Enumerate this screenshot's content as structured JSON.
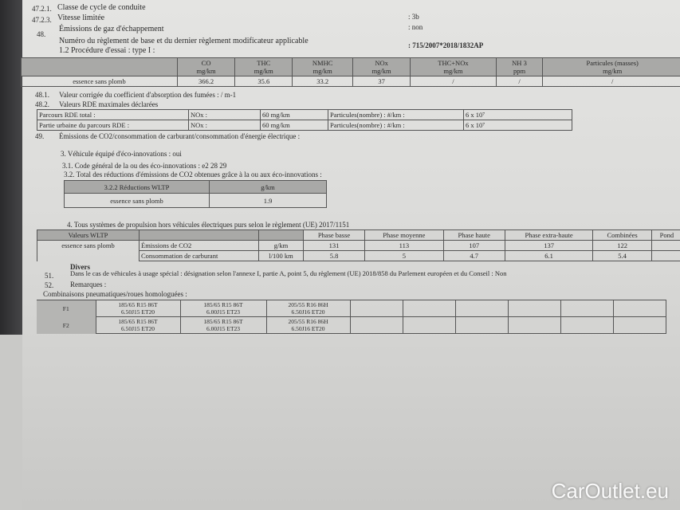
{
  "header": [
    {
      "num": "47.2.1.",
      "label": "Classe de cycle de conduite",
      "value": ""
    },
    {
      "num": "47.2.3.",
      "label": "Vitesse limitée",
      "value": ": 3b"
    },
    {
      "num": "48.",
      "label": "Émissions de gaz d'échappement",
      "value": ": non"
    },
    {
      "num": "",
      "label": "Numéro du règlement de base et du dernier règlement modificateur applicable",
      "value": ": 715/2007*2018/1832AP"
    },
    {
      "num": "",
      "label": "1.2 Procédure d'essai : type I :",
      "value": ""
    }
  ],
  "emissions": {
    "headers": [
      "",
      "CO\nmg/km",
      "THC\nmg/km",
      "NMHC\nmg/km",
      "NOx\nmg/km",
      "THC+NOx\nmg/km",
      "NH 3\nppm",
      "Particules (masses)\nmg/km"
    ],
    "row": [
      "essence sans plomb",
      "366.2",
      "35.6",
      "33.2",
      "37",
      "/",
      "/",
      "/"
    ]
  },
  "s481": {
    "num": "48.1.",
    "text": "Valeur corrigée du coefficient d'absorption des fumées : / m-1"
  },
  "s482": {
    "num": "48.2.",
    "text": "Valeurs RDE maximales déclarées"
  },
  "rde": [
    [
      "Parcours RDE total :",
      "NOx :",
      "60 mg/km",
      "Particules(nombre) : #/km :",
      "6 x 10⁷"
    ],
    [
      "Partie urbaine du parcours RDE    :",
      "NOx :",
      "60 mg/km",
      "Particules(nombre) : #/km :",
      "6 x 10⁷"
    ]
  ],
  "s49": {
    "num": "49.",
    "text": "Émissions de CO2/consommation de carburant/consommation d'énergie électrique :"
  },
  "eco": {
    "l1": "3. Véhicule équipé d'éco-innovations : oui",
    "l2": "3.1. Code général de la ou des éco-innovations : e2 28 29",
    "l3": "3.2. Total des réductions d'émissions de CO2 obtenues grâce à la ou aux éco-innovations :",
    "table": {
      "h": [
        "3.2.2 Réductions WLTP",
        "g/km"
      ],
      "r": [
        "essence sans plomb",
        "1.9"
      ]
    }
  },
  "wltp": {
    "title": "4. Tous systèmes de propulsion hors véhicules électriques purs selon le règlement (UE) 2017/1151",
    "headers": [
      "Valeurs WLTP",
      "",
      "",
      "Phase basse",
      "Phase moyenne",
      "Phase haute",
      "Phase extra-haute",
      "Combinées",
      "Pond"
    ],
    "fuel": "essence sans plomb",
    "rows": [
      [
        "Émissions de CO2",
        "g/km",
        "131",
        "113",
        "107",
        "137",
        "122"
      ],
      [
        "Consommation de carburant",
        "l/100 km",
        "5.8",
        "5",
        "4.7",
        "6.1",
        "5.4"
      ]
    ]
  },
  "divers": "Divers",
  "s51": {
    "num": "51.",
    "text": "Dans le cas de véhicules à usage spécial : désignation selon l'annexe I, partie A, point 5, du règlement (UE) 2018/858 du Parlement européen et du Conseil : Non"
  },
  "s52": {
    "num": "52.",
    "text": "Remarques :"
  },
  "tyres": {
    "title": "Combinaisons pneumatiques/roues homologuées :",
    "rows": [
      [
        "F1",
        "185/65 R15 86T\n6.50J15 ET20",
        "185/65 R15 86T\n6.00J15 ET23",
        "205/55 R16 86H\n6.50J16 ET20"
      ],
      [
        "F2",
        "185/65 R15 86T\n6.50J15 ET20",
        "185/65 R15 86T\n6.00J15 ET23",
        "205/55 R16 86H\n6.50J16 ET20"
      ]
    ]
  },
  "watermark": "CarOutlet.eu"
}
